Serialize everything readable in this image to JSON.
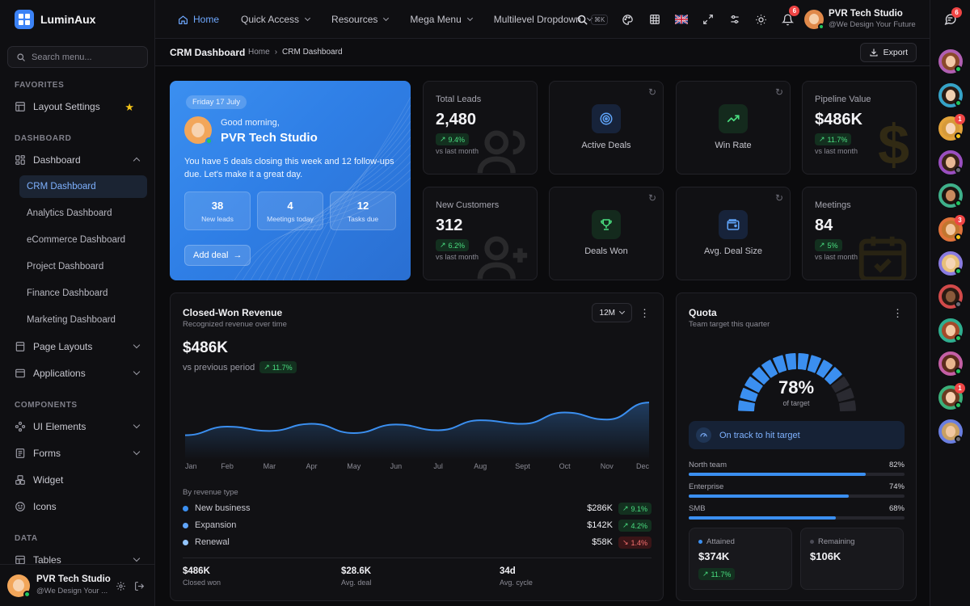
{
  "app": {
    "name": "LuminAux"
  },
  "sidebar": {
    "search_placeholder": "Search menu...",
    "favorites_label": "FAVORITES",
    "favorites": [
      {
        "label": "Layout Settings"
      }
    ],
    "dashboard_label": "DASHBOARD",
    "dashboard_group": "Dashboard",
    "dashboards": [
      {
        "label": "CRM Dashboard",
        "active": true
      },
      {
        "label": "Analytics Dashboard"
      },
      {
        "label": "eCommerce Dashboard"
      },
      {
        "label": "Project Dashboard"
      },
      {
        "label": "Finance Dashboard"
      },
      {
        "label": "Marketing Dashboard"
      }
    ],
    "page_layouts": "Page Layouts",
    "applications": "Applications",
    "components_label": "COMPONENTS",
    "components": [
      {
        "label": "UI Elements"
      },
      {
        "label": "Forms"
      },
      {
        "label": "Widget"
      },
      {
        "label": "Icons"
      }
    ],
    "data_label": "DATA",
    "tables": "Tables",
    "user": {
      "name": "PVR Tech Studio",
      "subtitle": "@We Design Your ..."
    }
  },
  "topbar": {
    "nav": [
      {
        "label": "Home",
        "active": true
      },
      {
        "label": "Quick Access"
      },
      {
        "label": "Resources"
      },
      {
        "label": "Mega Menu"
      },
      {
        "label": "Multilevel Dropdown"
      }
    ],
    "search_shortcut": "⌘K",
    "notifications_count": "6",
    "user": {
      "name": "PVR Tech Studio",
      "subtitle": "@We Design Your Future"
    }
  },
  "rail": {
    "chat_badge": "6",
    "badges": {
      "3": "1",
      "6": "3",
      "11": "1"
    }
  },
  "breadcrumb": {
    "title": "CRM Dashboard",
    "home": "Home",
    "current": "CRM Dashboard",
    "export_label": "Export"
  },
  "hero": {
    "date": "Friday 17 July",
    "greeting": "Good morning,",
    "name": "PVR Tech Studio",
    "message": "You have 5 deals closing this week and 12 follow-ups due. Let's make it a great day.",
    "stats": [
      {
        "value": "38",
        "label": "New leads"
      },
      {
        "value": "4",
        "label": "Meetings today"
      },
      {
        "value": "12",
        "label": "Tasks due"
      }
    ],
    "cta": "Add deal"
  },
  "kpis": {
    "total_leads": {
      "label": "Total Leads",
      "value": "2,480",
      "change": "9.4%",
      "sub": "vs last month"
    },
    "pipeline": {
      "label": "Pipeline Value",
      "value": "$486K",
      "change": "11.7%",
      "sub": "vs last month"
    },
    "new_customers": {
      "label": "New Customers",
      "value": "312",
      "change": "6.2%",
      "sub": "vs last month"
    },
    "meetings": {
      "label": "Meetings",
      "value": "84",
      "change": "5%",
      "sub": "vs last month"
    }
  },
  "mini": {
    "active_deals": "Active Deals",
    "win_rate": "Win Rate",
    "deals_won": "Deals Won",
    "avg_deal": "Avg. Deal Size"
  },
  "revenue": {
    "title": "Closed-Won Revenue",
    "subtitle": "Recognized revenue over time",
    "period": "12M",
    "total": "$486K",
    "vs_label": "vs previous period",
    "vs_change": "11.7%",
    "by_type_label": "By revenue type",
    "types": [
      {
        "name": "New business",
        "amount": "$286K",
        "change": "9.1%",
        "dir": "up",
        "color": "#3b8ff0"
      },
      {
        "name": "Expansion",
        "amount": "$142K",
        "change": "4.2%",
        "dir": "up",
        "color": "#60a5fa"
      },
      {
        "name": "Renewal",
        "amount": "$58K",
        "change": "1.4%",
        "dir": "down",
        "color": "#93c5fd"
      }
    ],
    "footer": [
      {
        "value": "$486K",
        "label": "Closed won"
      },
      {
        "value": "$28.6K",
        "label": "Avg. deal"
      },
      {
        "value": "34d",
        "label": "Avg. cycle"
      }
    ]
  },
  "chart_data": {
    "type": "area",
    "categories": [
      "Jan",
      "Feb",
      "Mar",
      "Apr",
      "May",
      "Jun",
      "Jul",
      "Aug",
      "Sept",
      "Oct",
      "Nov",
      "Dec"
    ],
    "series": [
      {
        "values": [
          30,
          42,
          36,
          46,
          33,
          45,
          37,
          51,
          46,
          62,
          52,
          76
        ]
      }
    ],
    "ylim": [
      0,
      100
    ],
    "grid": false,
    "color": "#3b8ff0"
  },
  "quota": {
    "title": "Quota",
    "subtitle": "Team target this quarter",
    "percent": "78%",
    "fraction": 0.78,
    "of_target": "of target",
    "status": "On track to hit target",
    "teams": [
      {
        "label": "North team",
        "percent": "82%",
        "fraction": 0.82
      },
      {
        "label": "Enterprise",
        "percent": "74%",
        "fraction": 0.74
      },
      {
        "label": "SMB",
        "percent": "68%",
        "fraction": 0.68
      }
    ],
    "attained": {
      "label": "Attained",
      "value": "$374K",
      "change": "11.7%"
    },
    "remaining": {
      "label": "Remaining",
      "value": "$106K"
    }
  }
}
